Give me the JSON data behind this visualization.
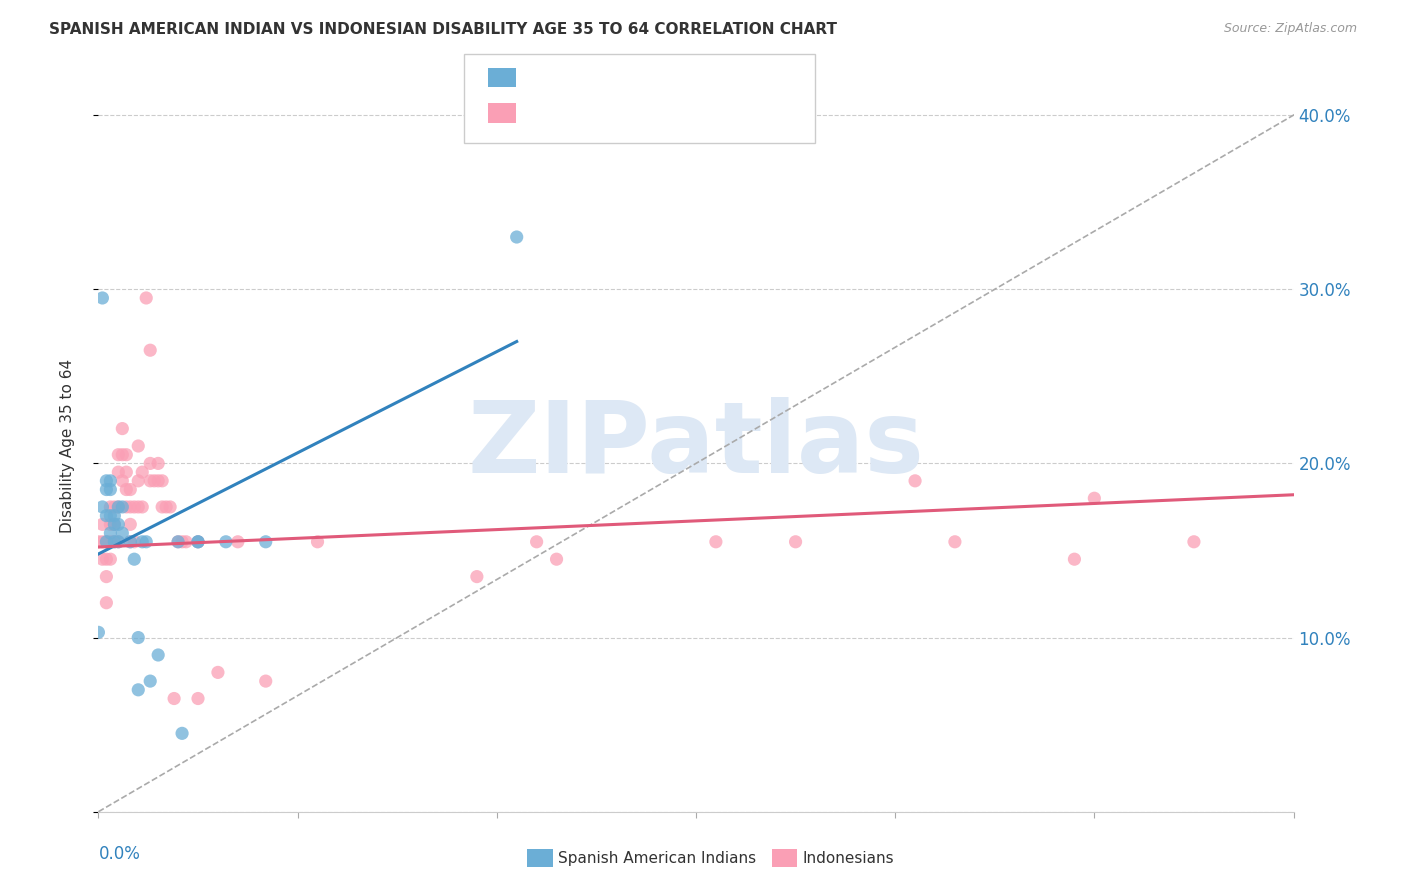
{
  "title": "SPANISH AMERICAN INDIAN VS INDONESIAN DISABILITY AGE 35 TO 64 CORRELATION CHART",
  "source": "Source: ZipAtlas.com",
  "ylabel": "Disability Age 35 to 64",
  "xmin": 0.0,
  "xmax": 0.3,
  "ymin": 0.0,
  "ymax": 0.42,
  "color_blue": "#6baed6",
  "color_pink": "#fa9fb5",
  "color_blue_text": "#3182bd",
  "color_pink_text": "#e05a7a",
  "color_dark": "#333333",
  "color_source": "#999999",
  "color_grid": "#cccccc",
  "color_ref_line": "#aaaaaa",
  "blue_trend_x": [
    0.0,
    0.105
  ],
  "blue_trend_y": [
    0.148,
    0.27
  ],
  "pink_trend_x": [
    0.0,
    0.3
  ],
  "pink_trend_y": [
    0.152,
    0.182
  ],
  "ref_line_x": [
    0.0,
    0.315
  ],
  "ref_line_y": [
    0.0,
    0.42
  ],
  "blue_scatter_x": [
    0.0,
    0.001,
    0.001,
    0.002,
    0.002,
    0.002,
    0.002,
    0.003,
    0.003,
    0.003,
    0.003,
    0.004,
    0.004,
    0.004,
    0.005,
    0.005,
    0.005,
    0.006,
    0.006,
    0.008,
    0.009,
    0.01,
    0.01,
    0.011,
    0.012,
    0.013,
    0.015,
    0.02,
    0.021,
    0.025,
    0.025,
    0.032,
    0.042,
    0.105
  ],
  "blue_scatter_y": [
    0.103,
    0.295,
    0.175,
    0.19,
    0.185,
    0.17,
    0.155,
    0.19,
    0.185,
    0.17,
    0.16,
    0.17,
    0.165,
    0.155,
    0.175,
    0.165,
    0.155,
    0.16,
    0.175,
    0.155,
    0.145,
    0.1,
    0.07,
    0.155,
    0.155,
    0.075,
    0.09,
    0.155,
    0.045,
    0.155,
    0.155,
    0.155,
    0.155,
    0.33
  ],
  "pink_scatter_x": [
    0.0,
    0.001,
    0.001,
    0.001,
    0.002,
    0.002,
    0.002,
    0.002,
    0.003,
    0.003,
    0.003,
    0.003,
    0.004,
    0.004,
    0.004,
    0.005,
    0.005,
    0.005,
    0.005,
    0.006,
    0.006,
    0.006,
    0.007,
    0.007,
    0.007,
    0.007,
    0.008,
    0.008,
    0.008,
    0.008,
    0.009,
    0.009,
    0.01,
    0.01,
    0.01,
    0.011,
    0.011,
    0.012,
    0.013,
    0.013,
    0.013,
    0.014,
    0.015,
    0.015,
    0.016,
    0.016,
    0.017,
    0.018,
    0.019,
    0.02,
    0.021,
    0.022,
    0.025,
    0.025,
    0.03,
    0.035,
    0.042,
    0.055,
    0.095,
    0.11,
    0.115,
    0.155,
    0.175,
    0.205,
    0.215,
    0.245,
    0.25,
    0.275
  ],
  "pink_scatter_y": [
    0.155,
    0.165,
    0.155,
    0.145,
    0.155,
    0.145,
    0.135,
    0.12,
    0.175,
    0.165,
    0.155,
    0.145,
    0.175,
    0.165,
    0.155,
    0.205,
    0.195,
    0.175,
    0.155,
    0.22,
    0.205,
    0.19,
    0.205,
    0.195,
    0.185,
    0.175,
    0.185,
    0.175,
    0.165,
    0.155,
    0.175,
    0.155,
    0.21,
    0.19,
    0.175,
    0.195,
    0.175,
    0.295,
    0.265,
    0.2,
    0.19,
    0.19,
    0.2,
    0.19,
    0.19,
    0.175,
    0.175,
    0.175,
    0.065,
    0.155,
    0.155,
    0.155,
    0.155,
    0.065,
    0.08,
    0.155,
    0.075,
    0.155,
    0.135,
    0.155,
    0.145,
    0.155,
    0.155,
    0.19,
    0.155,
    0.145,
    0.18,
    0.155
  ],
  "watermark_text": "ZIPatlas",
  "watermark_color": "#dde8f5",
  "bottom_legend1": "Spanish American Indians",
  "bottom_legend2": "Indonesians"
}
